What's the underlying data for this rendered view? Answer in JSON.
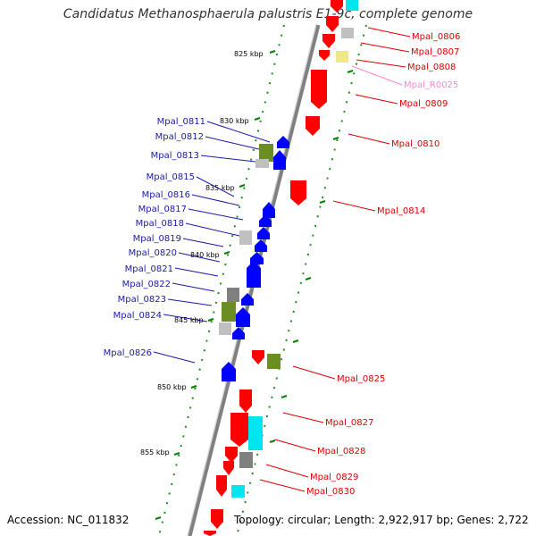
{
  "title": "Candidatus Methanosphaerula palustris E1-9c, complete genome",
  "footer": {
    "accession": "Accession: NC_011832",
    "topology": "Topology: circular; Length: 2,922,917 bp; Genes: 2,722"
  },
  "colors": {
    "forward": "#ff0000",
    "reverse": "#0000ff",
    "rna": "#ff88cc",
    "backbone": "#808080",
    "tick": "#008000",
    "cyan": "#00e5ee",
    "olive": "#6b8e23",
    "gray": "#808080",
    "lightgray": "#c0c0c0",
    "khaki": "#f0e68c"
  },
  "scale_labels": [
    "825 kbp",
    "830 kbp",
    "835 kbp",
    "840 kbp",
    "845 kbp",
    "850 kbp",
    "855 kbp"
  ],
  "left_genes": [
    "Mpal_0811",
    "Mpal_0812",
    "Mpal_0813",
    "Mpal_0815",
    "Mpal_0816",
    "Mpal_0817",
    "Mpal_0818",
    "Mpal_0819",
    "Mpal_0820",
    "Mpal_0821",
    "Mpal_0822",
    "Mpal_0823",
    "Mpal_0824",
    "Mpal_0826"
  ],
  "right_genes": [
    "Mpal_0806",
    "Mpal_0807",
    "Mpal_0808",
    "Mpal_R0025",
    "Mpal_0809",
    "Mpal_0810",
    "Mpal_0814",
    "Mpal_0825",
    "Mpal_0827",
    "Mpal_0828",
    "Mpal_0829",
    "Mpal_0830"
  ]
}
